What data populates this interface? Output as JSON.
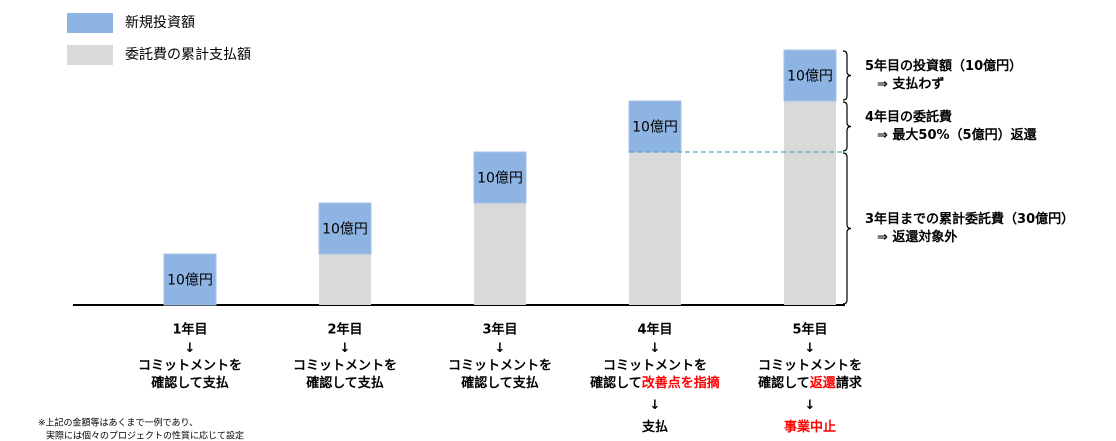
{
  "chart_data": {
    "type": "stacked-bar",
    "categories": [
      "1年目",
      "2年目",
      "3年目",
      "4年目",
      "5年目"
    ],
    "series": [
      {
        "name": "新規投資額",
        "color": "#8eb4e3",
        "values": [
          10,
          10,
          10,
          10,
          10
        ],
        "value_labels": [
          "10億円",
          "10億円",
          "10億円",
          "10億円",
          "10億円"
        ]
      },
      {
        "name": "委託費の累計支払額",
        "color": "#d9d9d9",
        "values": [
          0,
          10,
          20,
          30,
          40
        ]
      }
    ],
    "ylim": [
      0,
      50
    ],
    "captions": [
      [
        [
          {
            "text": "↓"
          }
        ],
        [
          {
            "text": "コミットメントを"
          }
        ],
        [
          {
            "text": "確認して支払"
          }
        ]
      ],
      [
        [
          {
            "text": "↓"
          }
        ],
        [
          {
            "text": "コミットメントを"
          }
        ],
        [
          {
            "text": "確認して支払"
          }
        ]
      ],
      [
        [
          {
            "text": "↓"
          }
        ],
        [
          {
            "text": "コミットメントを"
          }
        ],
        [
          {
            "text": "確認して支払"
          }
        ]
      ],
      [
        [
          {
            "text": "↓"
          }
        ],
        [
          {
            "text": "コミットメントを"
          }
        ],
        [
          {
            "text": "確認して"
          },
          {
            "text": "改善点を指摘",
            "color": "#ff0000"
          }
        ],
        [
          {
            "text": "↓"
          }
        ],
        [
          {
            "text": "支払"
          }
        ]
      ],
      [
        [
          {
            "text": "↓"
          }
        ],
        [
          {
            "text": "コミットメントを"
          }
        ],
        [
          {
            "text": "確認して"
          },
          {
            "text": "返還",
            "color": "#ff0000"
          },
          {
            "text": "請求"
          }
        ],
        [
          {
            "text": "↓"
          }
        ],
        [
          {
            "text": "事業中止",
            "color": "#ff0000"
          }
        ]
      ]
    ],
    "annotations": [
      {
        "lines": [
          "5年目の投資額（10億円）",
          "⇒ 支払わず"
        ]
      },
      {
        "lines": [
          "4年目の委託費",
          "⇒ 最大50%（5億円）返還"
        ]
      },
      {
        "lines": [
          "3年目までの累計委託費（30億円）",
          "⇒ 返還対象外"
        ]
      }
    ],
    "footnote": [
      "※上記の金額等はあくまで一例であり、",
      "実際には個々のプロジェクトの性質に応じて設定"
    ]
  }
}
